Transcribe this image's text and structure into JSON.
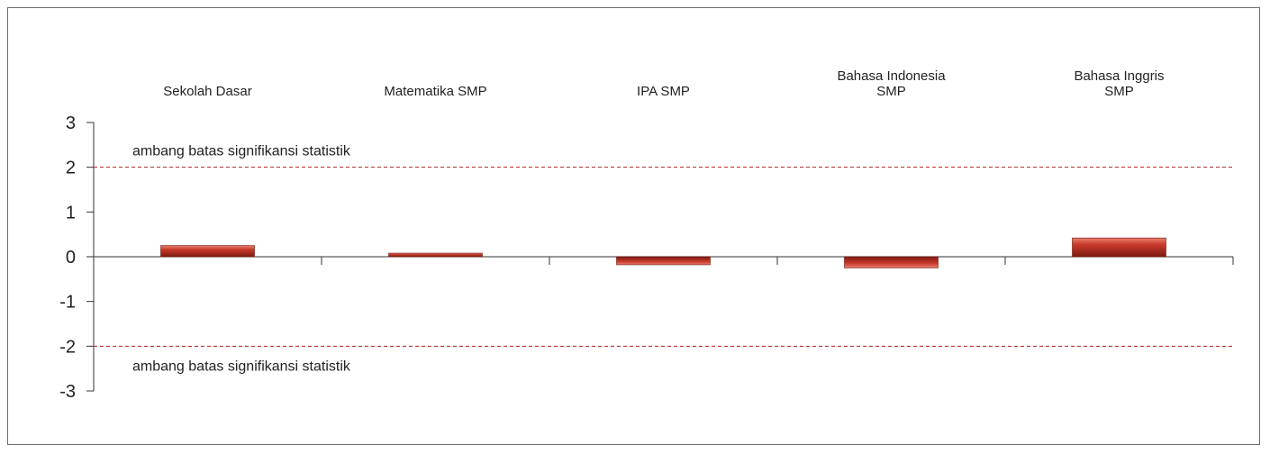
{
  "chart_data": {
    "type": "bar",
    "categories": [
      [
        "Sekolah Dasar"
      ],
      [
        "Matematika SMP"
      ],
      [
        "IPA SMP"
      ],
      [
        "Bahasa Indonesia",
        "SMP"
      ],
      [
        "Bahasa Inggris",
        "SMP"
      ]
    ],
    "values": [
      0.25,
      0.08,
      -0.18,
      -0.25,
      0.42
    ],
    "ylim": [
      -3,
      3
    ],
    "yticks": [
      3,
      2,
      1,
      0,
      -1,
      -2,
      -3
    ],
    "yticklabels": [
      "3",
      "2",
      "1",
      "0",
      "-1",
      "-2",
      "-3"
    ],
    "thresholds": [
      {
        "value": 2,
        "label": "ambang batas signifikansi statistik"
      },
      {
        "value": -2,
        "label": "ambang batas signifikansi statistik"
      }
    ],
    "bar_color": "#c0392b",
    "threshold_color": "#b22222",
    "grid": false,
    "title": "",
    "xlabel": "",
    "ylabel": ""
  }
}
